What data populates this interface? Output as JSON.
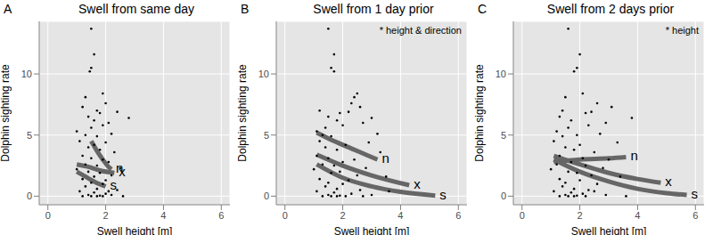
{
  "chart_data": [
    {
      "type": "scatter",
      "label": "A",
      "title": "Swell from same day",
      "x_label": "Swell height [m]",
      "y_label": "Dolphin sighting rate",
      "xlim": [
        -0.3,
        6.3
      ],
      "ylim": [
        -0.7,
        14.3
      ],
      "xticks": [
        0,
        2,
        4,
        6
      ],
      "yticks": [
        0,
        5,
        10
      ],
      "grid": true,
      "color": "#000000",
      "marker": "circle",
      "x": [
        1.5,
        1.6,
        1.5,
        1.45,
        1.3,
        1.9,
        2.0,
        1.7,
        1.2,
        1.8,
        1.4,
        2.4,
        2.8,
        1.6,
        2.1,
        1.0,
        1.5,
        1.9,
        1.3,
        2.2,
        1.7,
        1.1,
        1.6,
        2.0,
        1.4,
        1.8,
        2.3,
        1.2,
        1.5,
        1.9,
        2.1,
        1.3,
        1.7,
        2.5,
        1.0,
        1.4,
        1.8,
        2.2,
        1.6,
        1.2,
        2.0,
        1.5,
        1.9,
        1.3,
        1.7,
        2.4,
        1.1,
        1.6,
        2.0,
        1.4,
        1.8,
        2.2,
        1.5,
        1.9,
        1.2,
        2.6,
        1.7,
        2.1
      ],
      "values": [
        13.7,
        11.6,
        10.5,
        10.2,
        8.1,
        8.4,
        7.6,
        7.0,
        7.3,
        6.8,
        6.5,
        6.9,
        6.4,
        6.2,
        6.0,
        5.3,
        5.6,
        5.8,
        5.0,
        5.1,
        4.9,
        4.5,
        4.2,
        4.4,
        4.0,
        3.8,
        3.6,
        3.3,
        3.1,
        3.0,
        2.8,
        2.6,
        2.5,
        2.3,
        2.2,
        2.0,
        1.9,
        1.7,
        1.6,
        1.4,
        1.3,
        1.1,
        1.0,
        0.8,
        0.6,
        0.5,
        0.4,
        0.3,
        0.2,
        0.1,
        0.05,
        0.1,
        0,
        0,
        0,
        0,
        0,
        0.4
      ],
      "series": [
        {
          "name": "n",
          "type": "line",
          "color": "#666666",
          "x": [
            1.5,
            1.7,
            1.9,
            2.1,
            2.2
          ],
          "values": [
            4.5,
            3.7,
            3.0,
            2.4,
            2.2
          ]
        },
        {
          "name": "x",
          "type": "line",
          "color": "#666666",
          "x": [
            1.0,
            1.4,
            1.8,
            2.3
          ],
          "values": [
            2.6,
            2.4,
            2.1,
            1.9
          ]
        },
        {
          "name": "s",
          "type": "line",
          "color": "#666666",
          "x": [
            1.0,
            1.3,
            1.6,
            2.0
          ],
          "values": [
            2.0,
            1.6,
            1.2,
            0.8
          ]
        }
      ]
    },
    {
      "type": "scatter",
      "label": "B",
      "title": "Swell from 1 day prior",
      "annotation": "* height & direction",
      "x_label": "Swell height [m]",
      "y_label": "Dolphin sighting rate",
      "xlim": [
        -0.3,
        6.3
      ],
      "ylim": [
        -0.7,
        14.3
      ],
      "xticks": [
        0,
        2,
        4,
        6
      ],
      "yticks": [
        0,
        5,
        10
      ],
      "grid": true,
      "color": "#000000",
      "marker": "circle",
      "x": [
        1.5,
        1.7,
        1.6,
        1.7,
        2.4,
        2.5,
        2.3,
        1.2,
        2.6,
        1.9,
        1.5,
        2.2,
        3.0,
        1.8,
        2.7,
        1.1,
        1.4,
        2.0,
        1.3,
        3.2,
        1.6,
        1.2,
        2.1,
        2.9,
        1.4,
        1.8,
        3.3,
        1.1,
        1.5,
        2.4,
        2.0,
        1.3,
        1.7,
        2.8,
        1.0,
        1.9,
        1.6,
        2.5,
        3.5,
        1.2,
        2.2,
        1.5,
        2.0,
        1.4,
        1.8,
        2.6,
        1.1,
        1.7,
        2.3,
        1.5,
        1.9,
        3.0,
        1.6,
        2.1,
        1.3,
        2.7,
        1.8,
        3.6
      ],
      "values": [
        13.7,
        11.6,
        10.5,
        10.2,
        8.1,
        8.4,
        7.6,
        7.0,
        7.3,
        6.8,
        6.5,
        6.9,
        6.4,
        6.2,
        6.0,
        5.3,
        5.6,
        5.8,
        5.0,
        5.1,
        4.9,
        4.5,
        4.2,
        4.4,
        4.0,
        3.8,
        3.6,
        3.3,
        3.1,
        3.0,
        2.8,
        2.6,
        2.5,
        2.3,
        2.2,
        2.0,
        1.9,
        1.7,
        1.6,
        1.4,
        1.3,
        1.1,
        1.0,
        0.8,
        0.6,
        0.5,
        0.4,
        0.3,
        0.2,
        0.1,
        0.05,
        0.1,
        0,
        0,
        0,
        0,
        0,
        0.4
      ],
      "series": [
        {
          "name": "n",
          "type": "line",
          "color": "#666666",
          "x": [
            1.1,
            1.7,
            2.3,
            2.8,
            3.2
          ],
          "values": [
            5.2,
            4.5,
            3.9,
            3.4,
            3.0
          ]
        },
        {
          "name": "x",
          "type": "line",
          "color": "#666666",
          "x": [
            1.1,
            2.0,
            3.0,
            4.3
          ],
          "values": [
            3.4,
            2.5,
            1.7,
            0.9
          ]
        },
        {
          "name": "s",
          "type": "line",
          "color": "#666666",
          "x": [
            1.1,
            2.0,
            3.0,
            4.0,
            5.2
          ],
          "values": [
            2.6,
            1.5,
            0.8,
            0.35,
            0.05
          ]
        }
      ]
    },
    {
      "type": "scatter",
      "label": "C",
      "title": "Swell from 2 days prior",
      "annotation": "* height",
      "x_label": "Swell height [m]",
      "y_label": "Dolphin sighting rate",
      "xlim": [
        -0.3,
        6.3
      ],
      "ylim": [
        -0.7,
        14.3
      ],
      "xticks": [
        0,
        2,
        4,
        6
      ],
      "yticks": [
        0,
        5,
        10
      ],
      "grid": true,
      "color": "#000000",
      "marker": "circle",
      "x": [
        1.6,
        2.0,
        1.9,
        1.8,
        1.5,
        2.1,
        2.6,
        1.4,
        3.1,
        2.2,
        1.3,
        2.4,
        3.8,
        1.7,
        2.9,
        1.2,
        1.6,
        2.3,
        1.9,
        2.7,
        1.4,
        1.1,
        2.0,
        3.3,
        1.5,
        1.8,
        2.5,
        1.3,
        2.1,
        3.0,
        1.7,
        1.2,
        2.2,
        2.8,
        1.0,
        1.6,
        1.9,
        2.4,
        3.4,
        1.3,
        2.0,
        1.5,
        2.6,
        1.4,
        1.8,
        2.3,
        1.1,
        1.7,
        2.1,
        1.5,
        1.9,
        2.9,
        1.6,
        2.2,
        1.3,
        3.6,
        1.8,
        2.5
      ],
      "values": [
        13.7,
        11.6,
        10.5,
        10.2,
        8.1,
        8.4,
        7.6,
        7.0,
        7.3,
        6.8,
        6.5,
        6.9,
        6.4,
        6.2,
        6.0,
        5.3,
        5.6,
        5.8,
        5.0,
        5.1,
        4.9,
        4.5,
        4.2,
        4.4,
        4.0,
        3.8,
        3.6,
        3.3,
        3.1,
        3.0,
        2.8,
        2.6,
        2.5,
        2.3,
        2.2,
        2.0,
        1.9,
        1.7,
        1.6,
        1.4,
        1.3,
        1.1,
        1.0,
        0.8,
        0.6,
        0.5,
        0.4,
        0.3,
        0.2,
        0.1,
        0.05,
        0.1,
        0,
        0,
        0,
        0,
        0,
        0.4
      ],
      "series": [
        {
          "name": "n",
          "type": "line",
          "color": "#666666",
          "x": [
            1.1,
            2.0,
            3.0,
            3.6
          ],
          "values": [
            2.8,
            3.0,
            3.1,
            3.2
          ]
        },
        {
          "name": "x",
          "type": "line",
          "color": "#666666",
          "x": [
            1.1,
            2.0,
            3.0,
            4.0,
            4.8
          ],
          "values": [
            3.3,
            2.6,
            1.9,
            1.4,
            1.1
          ]
        },
        {
          "name": "s",
          "type": "line",
          "color": "#666666",
          "x": [
            1.1,
            2.0,
            3.0,
            4.0,
            5.0,
            5.7
          ],
          "values": [
            3.0,
            2.0,
            1.2,
            0.6,
            0.25,
            0.1
          ]
        }
      ]
    }
  ]
}
